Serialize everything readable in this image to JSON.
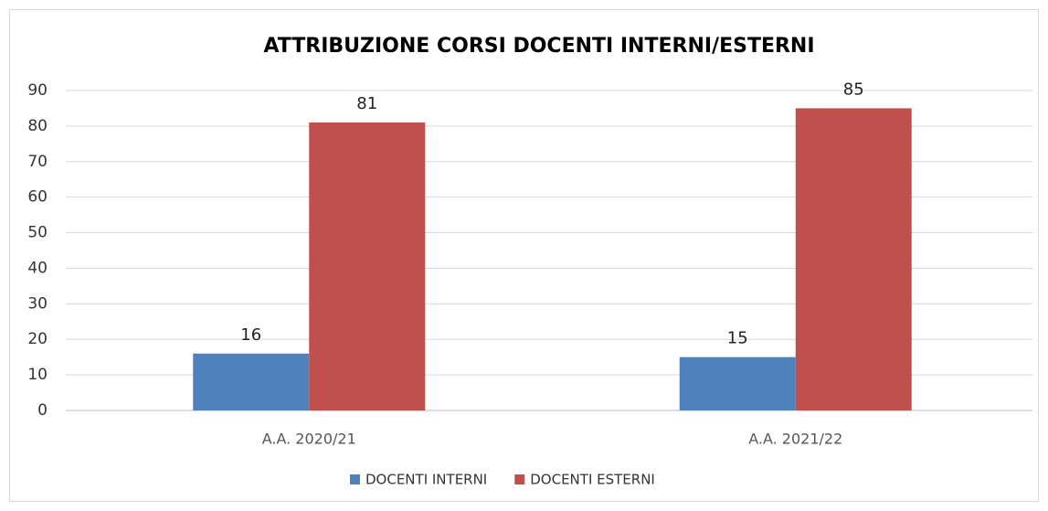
{
  "chart_data": {
    "type": "bar",
    "title": "ATTRIBUZIONE CORSI DOCENTI INTERNI/ESTERNI",
    "categories": [
      "A.A. 2020/21",
      "A.A. 2021/22"
    ],
    "series": [
      {
        "name": "DOCENTI INTERNI",
        "color": "#4f81bd",
        "values": [
          16,
          15
        ]
      },
      {
        "name": "DOCENTI ESTERNI",
        "color": "#c0504d",
        "values": [
          81,
          85
        ]
      }
    ],
    "ylim": [
      0,
      90
    ],
    "yticks": [
      0,
      10,
      20,
      30,
      40,
      50,
      60,
      70,
      80,
      90
    ],
    "grid": true,
    "legend": "bottom"
  }
}
